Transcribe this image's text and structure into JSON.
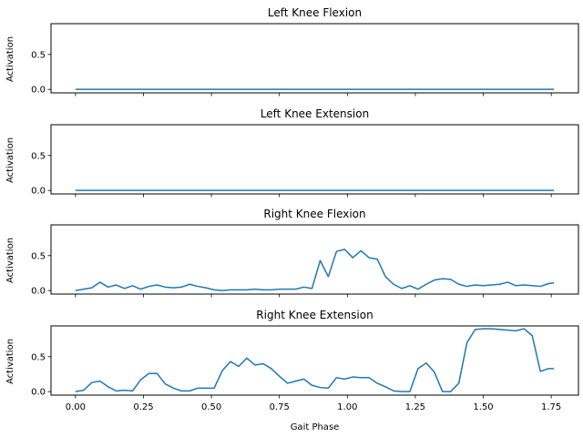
{
  "chart_data": [
    {
      "type": "line",
      "title": "Left Knee Flexion",
      "ylabel": "Activation",
      "xlabel": "",
      "ylim": [
        -0.05,
        0.94
      ],
      "yticks": [
        "0.0",
        "0.5"
      ],
      "ytick_values": [
        0,
        0.5
      ],
      "xtick_labels_visible": false,
      "color": "#1f77b4",
      "x": [
        0.0,
        1.76
      ],
      "y": [
        0.0,
        0.0
      ]
    },
    {
      "type": "line",
      "title": "Left Knee Extension",
      "ylabel": "Activation",
      "xlabel": "",
      "ylim": [
        -0.05,
        0.94
      ],
      "yticks": [
        "0.0",
        "0.5"
      ],
      "ytick_values": [
        0,
        0.5
      ],
      "xtick_labels_visible": false,
      "color": "#1f77b4",
      "x": [
        0.0,
        1.76
      ],
      "y": [
        0.0,
        0.0
      ]
    },
    {
      "type": "line",
      "title": "Right Knee Flexion",
      "ylabel": "Activation",
      "xlabel": "",
      "ylim": [
        -0.05,
        0.94
      ],
      "yticks": [
        "0.0",
        "0.5"
      ],
      "ytick_values": [
        0,
        0.5
      ],
      "xtick_labels_visible": false,
      "color": "#1f77b4",
      "x": [
        0.0,
        0.03,
        0.06,
        0.09,
        0.12,
        0.15,
        0.18,
        0.21,
        0.24,
        0.27,
        0.3,
        0.33,
        0.36,
        0.39,
        0.42,
        0.45,
        0.48,
        0.51,
        0.54,
        0.57,
        0.6,
        0.63,
        0.66,
        0.69,
        0.72,
        0.75,
        0.78,
        0.81,
        0.84,
        0.87,
        0.9,
        0.93,
        0.96,
        0.99,
        1.02,
        1.05,
        1.08,
        1.11,
        1.14,
        1.17,
        1.2,
        1.23,
        1.26,
        1.29,
        1.32,
        1.35,
        1.38,
        1.41,
        1.44,
        1.47,
        1.5,
        1.53,
        1.56,
        1.59,
        1.62,
        1.65,
        1.68,
        1.71,
        1.74,
        1.76
      ],
      "y": [
        0.0,
        0.02,
        0.04,
        0.12,
        0.05,
        0.08,
        0.03,
        0.07,
        0.02,
        0.06,
        0.08,
        0.05,
        0.04,
        0.05,
        0.09,
        0.06,
        0.04,
        0.01,
        0.0,
        0.01,
        0.01,
        0.01,
        0.02,
        0.01,
        0.01,
        0.02,
        0.02,
        0.02,
        0.05,
        0.03,
        0.43,
        0.2,
        0.56,
        0.59,
        0.47,
        0.57,
        0.47,
        0.45,
        0.2,
        0.09,
        0.03,
        0.07,
        0.02,
        0.09,
        0.15,
        0.17,
        0.16,
        0.09,
        0.06,
        0.08,
        0.07,
        0.08,
        0.09,
        0.12,
        0.07,
        0.08,
        0.07,
        0.06,
        0.1,
        0.11
      ]
    },
    {
      "type": "line",
      "title": "Right Knee Extension",
      "ylabel": "Activation",
      "xlabel": "Gait Phase",
      "ylim": [
        -0.05,
        0.94
      ],
      "yticks": [
        "0.0",
        "0.5"
      ],
      "ytick_values": [
        0,
        0.5
      ],
      "xtick_labels_visible": true,
      "xticks": [
        "0.00",
        "0.25",
        "0.50",
        "0.75",
        "1.00",
        "1.25",
        "1.50",
        "1.75"
      ],
      "xtick_values": [
        0,
        0.25,
        0.5,
        0.75,
        1.0,
        1.25,
        1.5,
        1.75
      ],
      "color": "#1f77b4",
      "x": [
        0.0,
        0.03,
        0.06,
        0.09,
        0.12,
        0.15,
        0.18,
        0.21,
        0.24,
        0.27,
        0.3,
        0.33,
        0.36,
        0.39,
        0.42,
        0.45,
        0.48,
        0.51,
        0.54,
        0.57,
        0.6,
        0.63,
        0.66,
        0.69,
        0.72,
        0.75,
        0.78,
        0.81,
        0.84,
        0.87,
        0.9,
        0.93,
        0.96,
        0.99,
        1.02,
        1.05,
        1.08,
        1.11,
        1.14,
        1.17,
        1.2,
        1.23,
        1.26,
        1.29,
        1.32,
        1.35,
        1.38,
        1.41,
        1.44,
        1.47,
        1.5,
        1.53,
        1.56,
        1.59,
        1.62,
        1.65,
        1.68,
        1.71,
        1.74,
        1.76
      ],
      "y": [
        0.0,
        0.02,
        0.13,
        0.15,
        0.07,
        0.01,
        0.02,
        0.01,
        0.17,
        0.26,
        0.26,
        0.11,
        0.05,
        0.01,
        0.01,
        0.05,
        0.05,
        0.05,
        0.3,
        0.43,
        0.36,
        0.48,
        0.38,
        0.4,
        0.33,
        0.22,
        0.12,
        0.15,
        0.18,
        0.09,
        0.06,
        0.05,
        0.2,
        0.18,
        0.21,
        0.2,
        0.2,
        0.12,
        0.07,
        0.01,
        0.0,
        0.0,
        0.33,
        0.41,
        0.28,
        0.0,
        0.0,
        0.12,
        0.7,
        0.89,
        0.9,
        0.9,
        0.89,
        0.88,
        0.87,
        0.9,
        0.8,
        0.29,
        0.33,
        0.33
      ]
    }
  ]
}
